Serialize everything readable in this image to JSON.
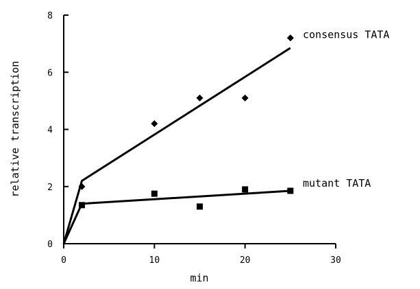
{
  "chart_data": {
    "type": "scatter",
    "title": "",
    "xlabel": "min",
    "ylabel": "relative transcription",
    "xlim": [
      0,
      30
    ],
    "ylim": [
      0,
      8
    ],
    "x_ticks": [
      "0",
      "10",
      "20",
      "30"
    ],
    "y_ticks": [
      "0",
      "2",
      "4",
      "6",
      "8"
    ],
    "grid": false,
    "legend": "direct labels at right end of each fit line",
    "series": [
      {
        "name": "consensus TATA",
        "marker": "diamond",
        "color": "#000000",
        "points": [
          {
            "x": 2,
            "y": 2.0
          },
          {
            "x": 10,
            "y": 4.2
          },
          {
            "x": 15,
            "y": 5.1
          },
          {
            "x": 20,
            "y": 5.1
          },
          {
            "x": 25,
            "y": 7.2
          }
        ],
        "fit_line": [
          {
            "x": 0,
            "y": 0
          },
          {
            "x": 2,
            "y": 2.2
          },
          {
            "x": 25,
            "y": 6.85
          }
        ]
      },
      {
        "name": "mutant TATA",
        "marker": "square",
        "color": "#000000",
        "points": [
          {
            "x": 2,
            "y": 1.35
          },
          {
            "x": 10,
            "y": 1.75
          },
          {
            "x": 15,
            "y": 1.3
          },
          {
            "x": 20,
            "y": 1.9
          },
          {
            "x": 25,
            "y": 1.85
          }
        ],
        "fit_line": [
          {
            "x": 0,
            "y": 0
          },
          {
            "x": 2,
            "y": 1.4
          },
          {
            "x": 25,
            "y": 1.85
          }
        ]
      }
    ]
  }
}
